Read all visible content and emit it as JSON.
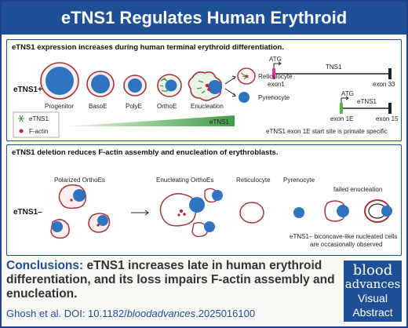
{
  "title": "eTNS1 Regulates Human Erythroid Differentiation",
  "panel1": {
    "heading": "eTNS1 expression increases during human terminal erythroid differentiation.",
    "row_label": "eTNS1+",
    "stages": [
      "Progenitor",
      "BasoE",
      "PolyE",
      "OrthoE",
      "Enucleation"
    ],
    "outcomes": [
      "Reticulocyte",
      "Pyrenocyte"
    ],
    "legend": [
      "eTNS1",
      "F-actin"
    ],
    "gradient_label": "eTNS1",
    "gene": {
      "atg1": "ATG",
      "tns1": "TNS1",
      "exon1": "exon1",
      "exon33": "exon 33",
      "atg2": "ATG",
      "etns1": "eTNS1",
      "exon1e": "exon 1E",
      "exon15": "exon 15"
    },
    "note": "eTNS1 exon 1E start site is primate specific"
  },
  "panel2": {
    "heading": "eTNS1 deletion reduces F-actin assembly and enucleation of erythroblasts.",
    "row_label": "eTNS1–",
    "labels": {
      "polarized": "Polarized OrthoEs",
      "enucleating": "Enucleating OrthoEs",
      "reticulocyte": "Reticulocyte",
      "pyrenocyte": "Pyrenocyte",
      "failed": "failed enucleation"
    },
    "note_line1": "eTNS1– biconcave-like nucleated cells",
    "note_line2": "are occasionally observed"
  },
  "conclusion": {
    "keyword": "Conclusions:",
    "text": " eTNS1 increases late in human erythroid differentiation, and its loss impairs F-actin assembly and enucleation."
  },
  "citation": {
    "prefix": "Ghosh et al. DOI: 10.1182/",
    "journal": "bloodadvances",
    "suffix": ".2025016100"
  },
  "logo": {
    "line1": "blood",
    "line2": "advances",
    "line3": "Visual",
    "line4": "Abstract"
  },
  "colors": {
    "brand": "#1e4f97",
    "nucleus": "#2f74c0",
    "membrane": "#a8343a",
    "etns1": "#3a9a48",
    "factin": "#c8202a",
    "exon_magenta": "#e0309a",
    "exon_green": "#5cb346"
  }
}
